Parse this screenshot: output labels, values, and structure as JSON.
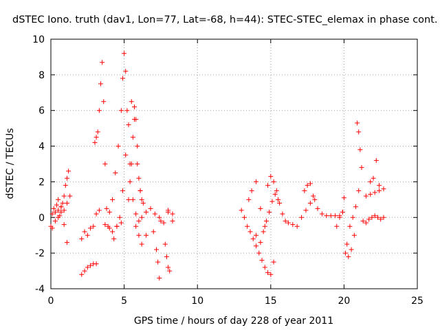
{
  "chart_data": {
    "type": "scatter",
    "title": "dSTEC Iono. truth (dav1, Lon=77, Lat=-68, h=44): STEC-STEC_elemax in phase cont. arcs",
    "xlabel": "GPS time / hours of day 228 of year 2011",
    "ylabel": "dSTEC  / TECUs",
    "xlim": [
      0,
      25
    ],
    "ylim": [
      -4,
      10
    ],
    "x_ticks": [
      0,
      5,
      10,
      15,
      20,
      25
    ],
    "y_ticks": [
      -4,
      -2,
      0,
      2,
      4,
      6,
      8,
      10
    ],
    "x_tick_labels": [
      "0",
      "5",
      "10",
      "15",
      "20",
      "25"
    ],
    "y_tick_labels": [
      "-4",
      "-2",
      "0",
      "2",
      "4",
      "6",
      "8",
      "10"
    ],
    "grid": true,
    "legend": "none",
    "marker": "+",
    "color": "#ff0000",
    "series": [
      {
        "name": "",
        "x": [
          0.0,
          0.1,
          0.2,
          0.3,
          0.4,
          0.5,
          0.6,
          0.7,
          0.8,
          0.9,
          1.0,
          1.1,
          1.2,
          0.1,
          0.3,
          0.5,
          0.7,
          0.9,
          1.1,
          0.5,
          0.7,
          0.9,
          1.1,
          1.3,
          2.1,
          2.3,
          2.5,
          2.7,
          2.9,
          3.1,
          2.1,
          2.3,
          2.5,
          2.7,
          2.9,
          3.1,
          3.3,
          3.0,
          3.1,
          3.2,
          3.3,
          3.4,
          3.5,
          3.6,
          3.7,
          3.8,
          3.9,
          4.0,
          4.2,
          4.4,
          4.6,
          4.8,
          4.9,
          5.0,
          5.1,
          5.2,
          5.4,
          5.6,
          5.8,
          6.0,
          6.2,
          6.5,
          6.8,
          7.1,
          7.4,
          7.7,
          8.0,
          8.3,
          4.3,
          4.5,
          4.7,
          4.9,
          5.1,
          5.3,
          5.5,
          5.7,
          5.9,
          6.1,
          5.3,
          5.4,
          5.5,
          5.6,
          5.7,
          5.8,
          5.9,
          6.0,
          6.1,
          6.2,
          6.3,
          5.8,
          6.0,
          6.2,
          6.5,
          7.0,
          7.5,
          8.0,
          8.3,
          7.2,
          7.3,
          7.4,
          7.8,
          7.9,
          8.0,
          8.1,
          3.7,
          4.0,
          4.2,
          4.5,
          4.8,
          13.0,
          13.2,
          13.4,
          13.6,
          13.8,
          14.0,
          14.2,
          14.4,
          14.6,
          14.8,
          15.0,
          15.2,
          13.5,
          13.7,
          14.0,
          14.3,
          14.6,
          14.8,
          15.0,
          15.2,
          15.4,
          14.0,
          14.3,
          14.5,
          14.7,
          14.9,
          15.1,
          15.3,
          15.5,
          15.6,
          15.8,
          16.0,
          16.2,
          16.5,
          16.8,
          17.1,
          17.4,
          17.7,
          18.0,
          17.3,
          17.5,
          17.7,
          17.9,
          18.2,
          18.5,
          18.8,
          19.1,
          19.4,
          19.7,
          19.9,
          20.0,
          19.5,
          19.7,
          19.9,
          20.1,
          20.3,
          20.5,
          20.7,
          20.2,
          20.4,
          20.6,
          20.8,
          21.0,
          20.9,
          21.0,
          21.1,
          21.2,
          21.3,
          21.5,
          21.7,
          21.9,
          22.1,
          22.3,
          22.5,
          22.7,
          21.5,
          21.8,
          22.1,
          22.4,
          22.7,
          21.8,
          22.0,
          22.2,
          22.4
        ],
        "y": [
          -0.5,
          0.2,
          0.5,
          0.3,
          0.7,
          0.4,
          0.1,
          0.6,
          0.8,
          1.2,
          1.8,
          2.2,
          2.6,
          -0.6,
          -0.2,
          0.0,
          0.3,
          -0.4,
          -1.4,
          1.0,
          0.6,
          0.4,
          0.8,
          1.2,
          -3.2,
          -3.0,
          -2.8,
          -2.7,
          -2.6,
          -2.6,
          -1.2,
          -0.8,
          -1.0,
          -0.6,
          -0.5,
          0.2,
          0.4,
          4.2,
          4.5,
          4.8,
          6.0,
          7.5,
          8.7,
          6.5,
          3.0,
          0.5,
          -0.5,
          0.3,
          1.0,
          2.5,
          4.0,
          6.0,
          7.8,
          9.2,
          8.2,
          6.0,
          3.0,
          1.0,
          0.2,
          -0.2,
          0.0,
          0.3,
          0.5,
          0.2,
          0.0,
          -0.3,
          0.4,
          0.2,
          -1.2,
          -0.5,
          0.0,
          1.5,
          3.5,
          5.2,
          6.5,
          5.5,
          3.0,
          1.5,
          1.0,
          2.0,
          3.0,
          4.5,
          6.2,
          5.5,
          4.0,
          2.2,
          1.5,
          1.0,
          0.8,
          -0.5,
          -1.0,
          -1.5,
          -1.0,
          -0.8,
          -0.2,
          0.3,
          -0.2,
          -1.8,
          -2.5,
          -3.4,
          -1.5,
          -2.2,
          -2.8,
          -3.0,
          -0.4,
          -0.6,
          -0.8,
          -0.5,
          -0.3,
          0.4,
          0.0,
          -0.5,
          -0.8,
          -1.2,
          -1.6,
          -2.0,
          -2.4,
          -2.8,
          -3.1,
          -3.2,
          -2.5,
          1.0,
          1.5,
          2.0,
          0.5,
          -0.5,
          1.8,
          2.3,
          2.0,
          1.5,
          -1.0,
          -1.4,
          -0.8,
          -0.2,
          0.3,
          0.9,
          1.3,
          1.0,
          0.8,
          0.2,
          -0.2,
          -0.3,
          -0.4,
          -0.5,
          0.0,
          0.4,
          0.8,
          1.0,
          1.5,
          1.8,
          1.9,
          1.2,
          0.5,
          0.2,
          0.1,
          0.1,
          0.1,
          0.1,
          0.3,
          1.1,
          -0.5,
          0.0,
          0.3,
          -2.0,
          -2.2,
          -1.8,
          -1.0,
          -1.5,
          -0.5,
          0.0,
          0.6,
          1.5,
          5.3,
          4.8,
          3.8,
          2.8,
          -0.2,
          -0.3,
          -0.1,
          0.0,
          0.1,
          0.0,
          -0.1,
          0.0,
          1.2,
          1.3,
          1.4,
          1.5,
          1.6,
          2.0,
          2.2,
          3.2,
          1.8
        ]
      }
    ]
  }
}
